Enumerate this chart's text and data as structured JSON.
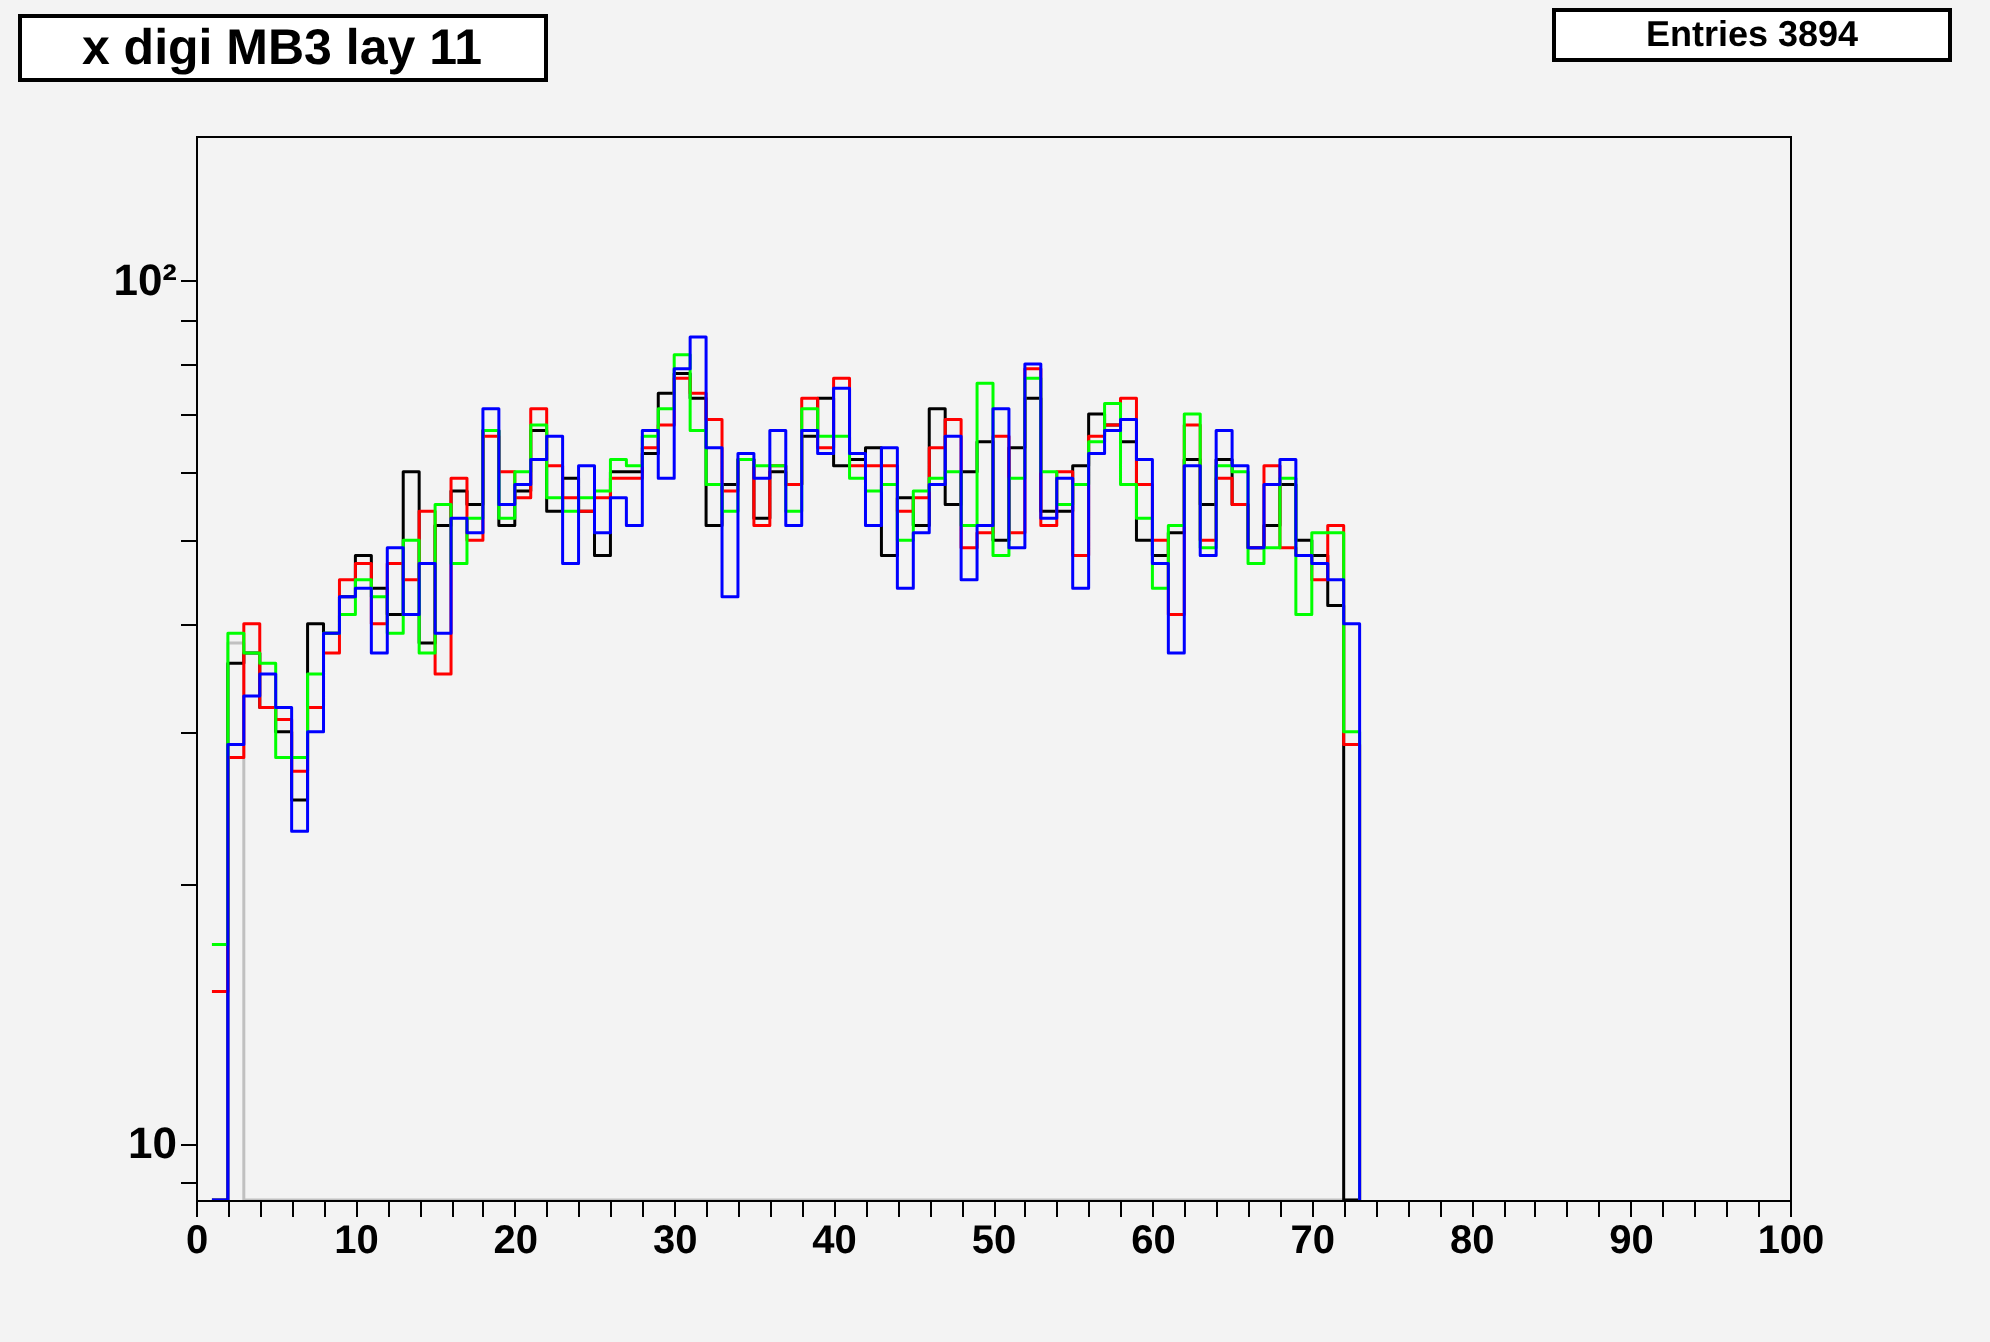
{
  "chart_data": {
    "type": "histogram",
    "title": "x digi MB3 lay 11",
    "annotations": [
      "Entries 3894"
    ],
    "bins": [
      1,
      2,
      3,
      4,
      5,
      6,
      7,
      8,
      9,
      10,
      11,
      12,
      13,
      14,
      15,
      16,
      17,
      18,
      19,
      20,
      21,
      22,
      23,
      24,
      25,
      26,
      27,
      28,
      29,
      30,
      31,
      32,
      33,
      34,
      35,
      36,
      37,
      38,
      39,
      40,
      41,
      42,
      43,
      44,
      45,
      46,
      47,
      48,
      49,
      50,
      51,
      52,
      53,
      54,
      55,
      56,
      57,
      58,
      59,
      60,
      61,
      62,
      63,
      64,
      65,
      66,
      67,
      68,
      69,
      70,
      71,
      72,
      73
    ],
    "series": [
      {
        "color": "#c0c0c0",
        "values": [
          17,
          38,
          null,
          null,
          null,
          null,
          null,
          null,
          null,
          null,
          null,
          null,
          null,
          null,
          null,
          null,
          null,
          null,
          null,
          null,
          null,
          null,
          null,
          null,
          null,
          null,
          null,
          null,
          null,
          null,
          null,
          null,
          null,
          null,
          null,
          null,
          null,
          null,
          null,
          null,
          null,
          null,
          null,
          null,
          null,
          null,
          null,
          null,
          null,
          null,
          null,
          null,
          null,
          null,
          null,
          null,
          null,
          null,
          null,
          null,
          null,
          null,
          null,
          null,
          null,
          null,
          null,
          null,
          null,
          null,
          null,
          null
        ]
      },
      {
        "color": "#000000",
        "values": [
          null,
          36,
          37,
          32,
          30,
          25,
          40,
          39,
          43,
          48,
          44,
          41,
          60,
          38,
          52,
          57,
          55,
          67,
          52,
          57,
          67,
          54,
          59,
          54,
          48,
          60,
          60,
          63,
          74,
          78,
          73,
          52,
          58,
          62,
          53,
          60,
          58,
          66,
          73,
          61,
          62,
          64,
          48,
          56,
          52,
          71,
          55,
          60,
          65,
          50,
          64,
          73,
          54,
          54,
          61,
          70,
          68,
          65,
          50,
          48,
          51,
          62,
          55,
          62,
          55,
          49,
          52,
          58,
          50,
          48,
          42,
          null
        ]
      },
      {
        "color": "#ff0000",
        "values": [
          15,
          28,
          40,
          32,
          31,
          27,
          32,
          37,
          45,
          47,
          40,
          47,
          45,
          54,
          35,
          59,
          50,
          66,
          60,
          56,
          71,
          61,
          56,
          54,
          56,
          59,
          59,
          64,
          68,
          77,
          74,
          69,
          57,
          62,
          52,
          61,
          58,
          73,
          64,
          77,
          61,
          61,
          61,
          54,
          56,
          64,
          69,
          49,
          51,
          66,
          51,
          79,
          52,
          60,
          48,
          66,
          68,
          73,
          58,
          50,
          41,
          68,
          50,
          59,
          55,
          49,
          61,
          49,
          48,
          45,
          52,
          29
        ]
      },
      {
        "color": "#00ff00",
        "values": [
          17,
          39,
          37,
          36,
          28,
          28,
          35,
          39,
          41,
          45,
          43,
          39,
          50,
          37,
          55,
          47,
          53,
          67,
          53,
          60,
          68,
          56,
          54,
          56,
          57,
          62,
          61,
          66,
          71,
          82,
          67,
          58,
          54,
          62,
          61,
          61,
          54,
          71,
          66,
          66,
          59,
          57,
          58,
          50,
          57,
          59,
          60,
          52,
          76,
          48,
          59,
          77,
          60,
          55,
          58,
          65,
          72,
          58,
          53,
          44,
          52,
          70,
          49,
          61,
          60,
          47,
          49,
          59,
          41,
          51,
          51,
          30
        ]
      },
      {
        "color": "#0000ff",
        "values": [
          null,
          29,
          33,
          35,
          32,
          23,
          30,
          39,
          43,
          44,
          37,
          49,
          41,
          47,
          39,
          53,
          51,
          71,
          55,
          58,
          62,
          66,
          47,
          61,
          51,
          56,
          52,
          67,
          59,
          79,
          86,
          64,
          43,
          63,
          59,
          67,
          52,
          67,
          63,
          75,
          63,
          52,
          64,
          44,
          51,
          58,
          66,
          45,
          52,
          71,
          49,
          80,
          53,
          59,
          44,
          63,
          67,
          69,
          62,
          47,
          37,
          61,
          48,
          67,
          61,
          49,
          58,
          62,
          48,
          47,
          45,
          40
        ]
      }
    ],
    "xlim": [
      0,
      100
    ],
    "xticks": [
      0,
      {
        "value": 2,
        "label": null
      },
      {
        "value": 4,
        "label": null
      },
      {
        "value": 6,
        "label": null
      },
      {
        "value": 8,
        "label": null
      },
      10,
      {
        "value": 12,
        "label": null
      },
      {
        "value": 14,
        "label": null
      },
      {
        "value": 16,
        "label": null
      },
      {
        "value": 18,
        "label": null
      },
      20,
      {
        "value": 22,
        "label": null
      },
      {
        "value": 24,
        "label": null
      },
      {
        "value": 26,
        "label": null
      },
      {
        "value": 28,
        "label": null
      },
      30,
      {
        "value": 32,
        "label": null
      },
      {
        "value": 34,
        "label": null
      },
      {
        "value": 36,
        "label": null
      },
      {
        "value": 38,
        "label": null
      },
      40,
      {
        "value": 42,
        "label": null
      },
      {
        "value": 44,
        "label": null
      },
      {
        "value": 46,
        "label": null
      },
      {
        "value": 48,
        "label": null
      },
      50,
      {
        "value": 52,
        "label": null
      },
      {
        "value": 54,
        "label": null
      },
      {
        "value": 56,
        "label": null
      },
      {
        "value": 58,
        "label": null
      },
      60,
      {
        "value": 62,
        "label": null
      },
      {
        "value": 64,
        "label": null
      },
      {
        "value": 66,
        "label": null
      },
      {
        "value": 68,
        "label": null
      },
      70,
      {
        "value": 72,
        "label": null
      },
      {
        "value": 74,
        "label": null
      },
      {
        "value": 76,
        "label": null
      },
      {
        "value": 78,
        "label": null
      },
      80,
      {
        "value": 82,
        "label": null
      },
      {
        "value": 84,
        "label": null
      },
      {
        "value": 86,
        "label": null
      },
      {
        "value": 88,
        "label": null
      },
      90,
      {
        "value": 92,
        "label": null
      },
      {
        "value": 94,
        "label": null
      },
      {
        "value": 96,
        "label": null
      },
      {
        "value": 98,
        "label": null
      },
      100
    ],
    "ylim": [
      8.6,
      147
    ],
    "log": true,
    "yticks": [
      {
        "value": 9,
        "label": null
      },
      10,
      {
        "value": 20,
        "label": null
      },
      {
        "value": 30,
        "label": null
      },
      {
        "value": 40,
        "label": null
      },
      {
        "value": 50,
        "label": null
      },
      {
        "value": 60,
        "label": null
      },
      {
        "value": 70,
        "label": null
      },
      {
        "value": 80,
        "label": null
      },
      {
        "value": 90,
        "label": null
      },
      {
        "value": 100,
        "label": "10²"
      }
    ],
    "grid": false
  }
}
